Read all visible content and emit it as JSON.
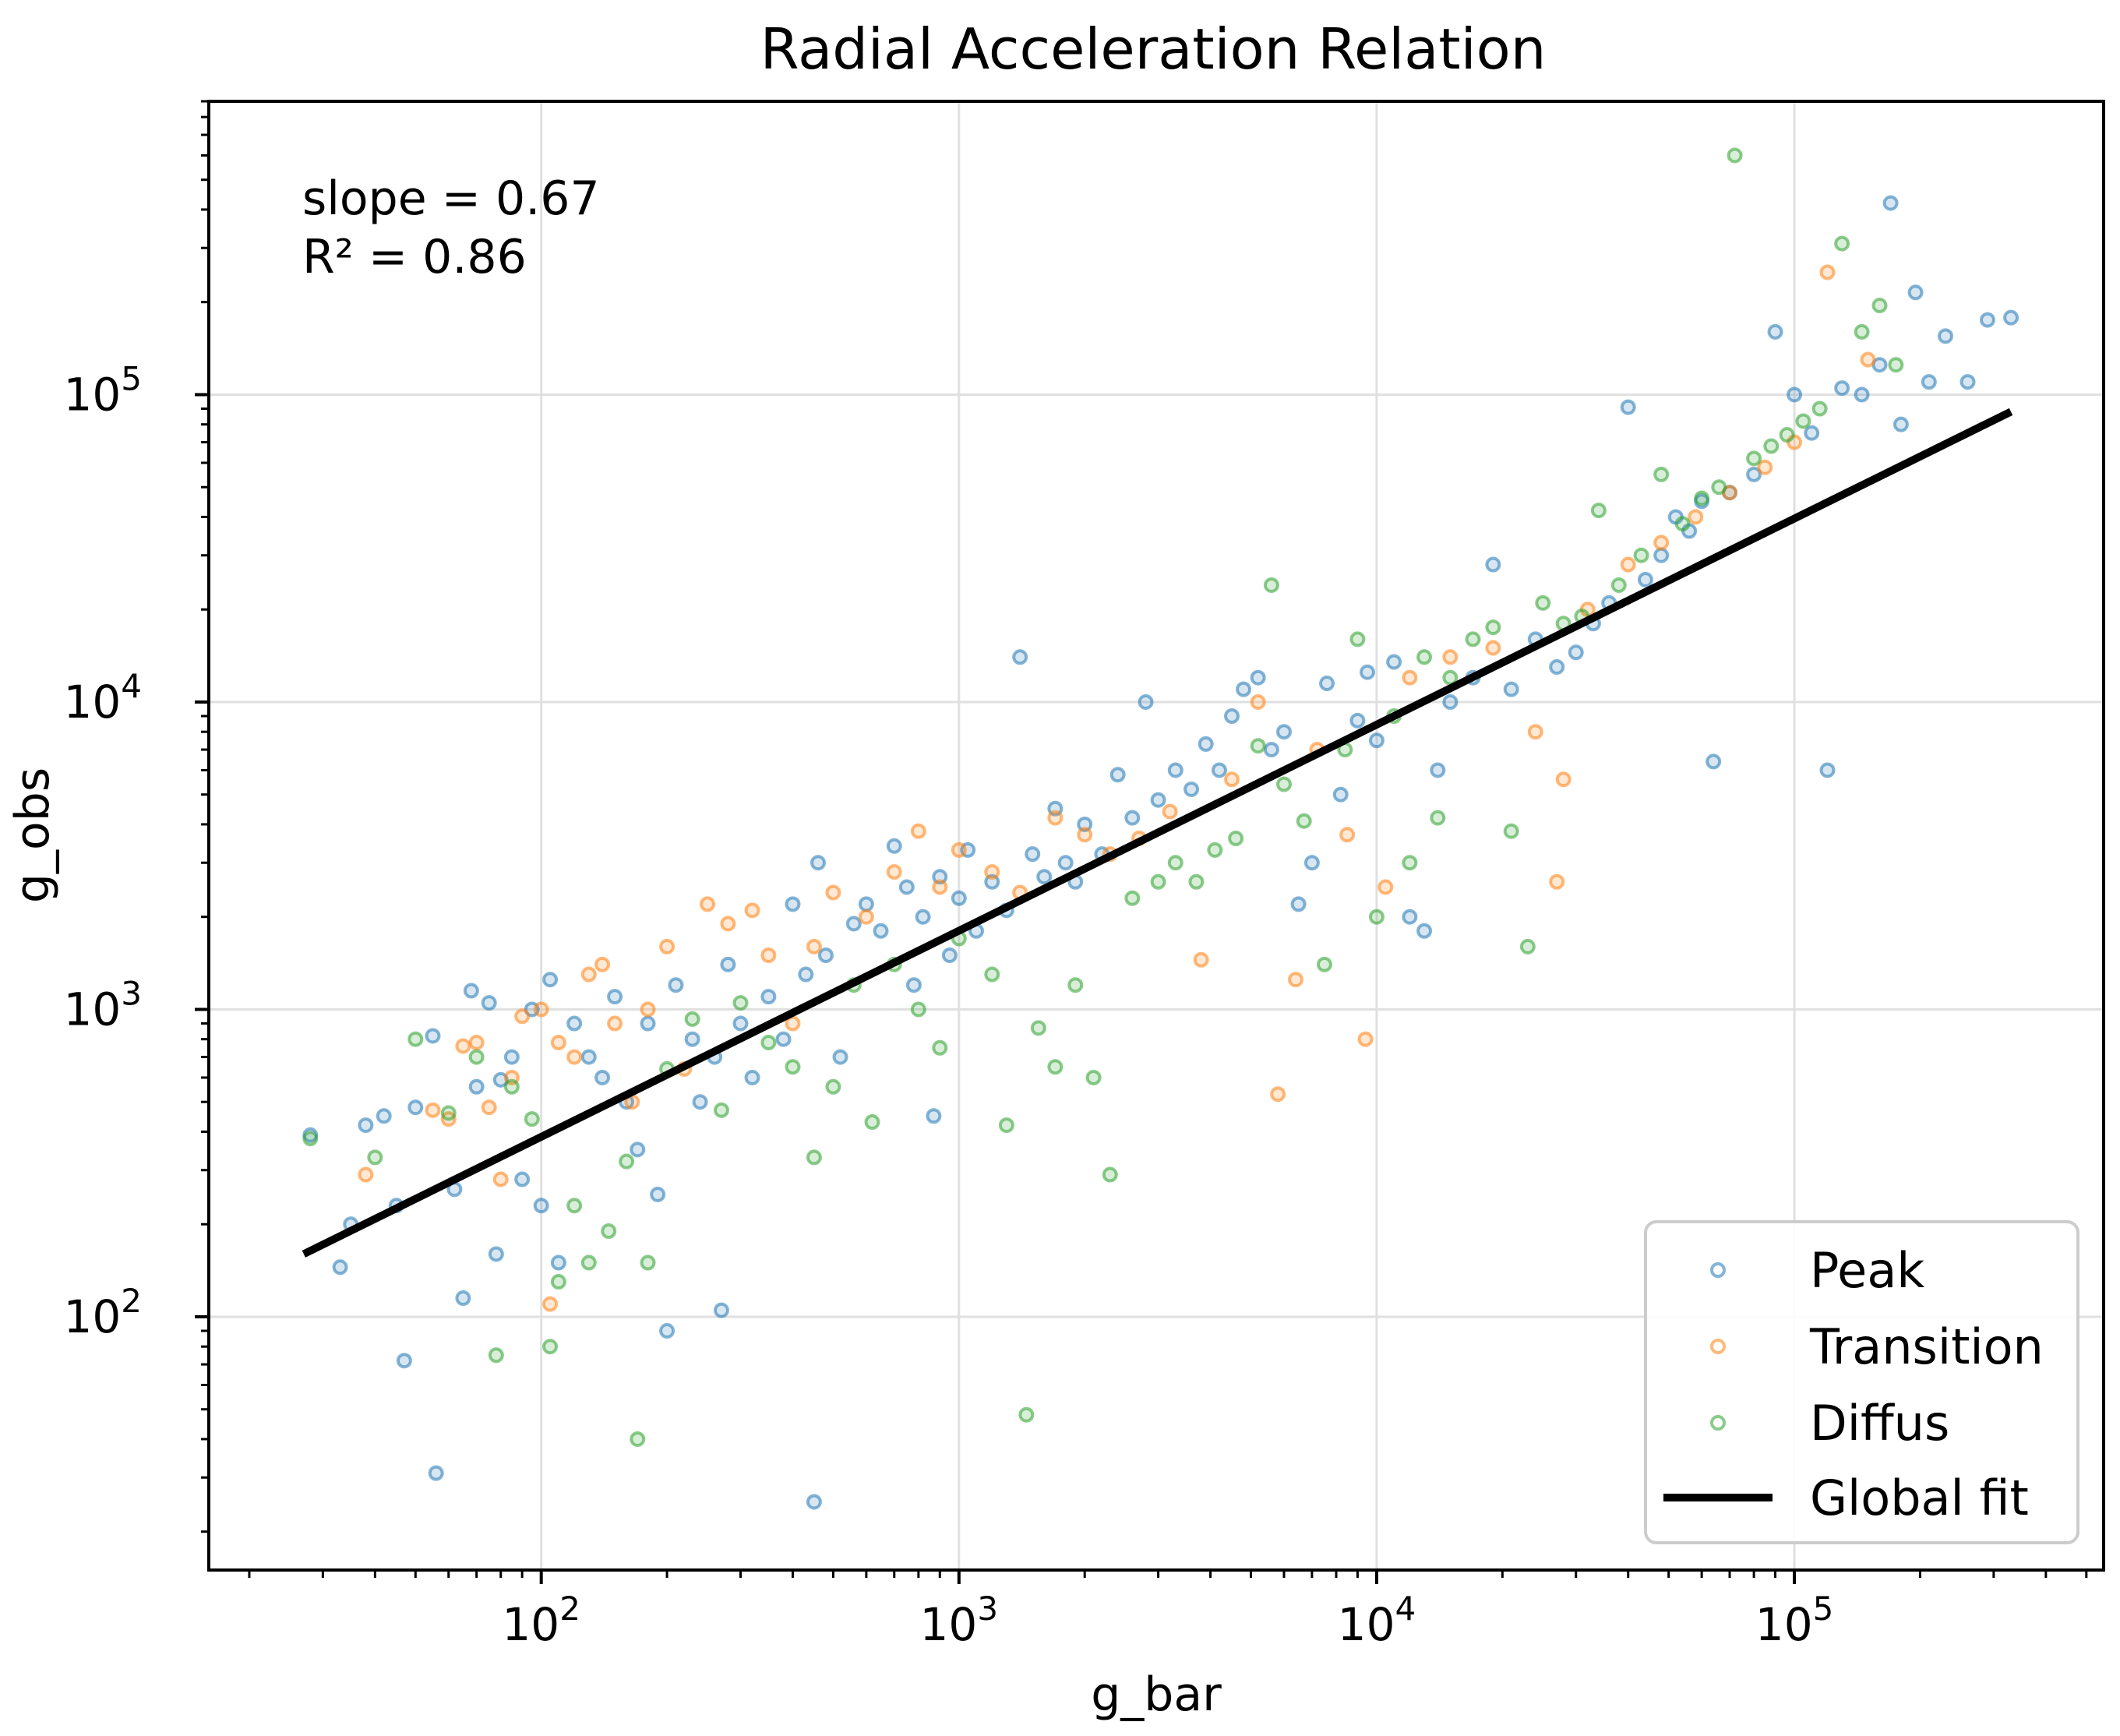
{
  "chart_data": {
    "type": "scatter",
    "title": "Radial Acceleration Relation",
    "xlabel": "g_bar",
    "ylabel": "g_obs",
    "xscale": "log",
    "yscale": "log",
    "xlim": [
      16,
      550000
    ],
    "ylim": [
      15,
      900000
    ],
    "xticks": [
      {
        "value": 100,
        "base": "10",
        "exp": "2"
      },
      {
        "value": 1000,
        "base": "10",
        "exp": "3"
      },
      {
        "value": 10000,
        "base": "10",
        "exp": "4"
      },
      {
        "value": 100000,
        "base": "10",
        "exp": "5"
      }
    ],
    "yticks": [
      {
        "value": 100,
        "base": "10",
        "exp": "2"
      },
      {
        "value": 1000,
        "base": "10",
        "exp": "3"
      },
      {
        "value": 10000,
        "base": "10",
        "exp": "4"
      },
      {
        "value": 100000,
        "base": "10",
        "exp": "5"
      }
    ],
    "grid": true,
    "annotation": [
      "slope = 0.67",
      "R² = 0.86"
    ],
    "legend_position": "lower-right",
    "series": [
      {
        "name": "Peak",
        "color": "#1f77b4",
        "points": [
          [
            28,
            390
          ],
          [
            33,
            145
          ],
          [
            35,
            200
          ],
          [
            38,
            420
          ],
          [
            42,
            450
          ],
          [
            45,
            230
          ],
          [
            47,
            72
          ],
          [
            50,
            480
          ],
          [
            55,
            820
          ],
          [
            56,
            31
          ],
          [
            62,
            260
          ],
          [
            65,
            115
          ],
          [
            68,
            1150
          ],
          [
            70,
            560
          ],
          [
            75,
            1050
          ],
          [
            78,
            160
          ],
          [
            80,
            590
          ],
          [
            85,
            700
          ],
          [
            90,
            280
          ],
          [
            95,
            1000
          ],
          [
            100,
            230
          ],
          [
            105,
            1250
          ],
          [
            110,
            150
          ],
          [
            120,
            900
          ],
          [
            130,
            700
          ],
          [
            140,
            600
          ],
          [
            150,
            1100
          ],
          [
            160,
            500
          ],
          [
            170,
            350
          ],
          [
            180,
            900
          ],
          [
            190,
            250
          ],
          [
            200,
            90
          ],
          [
            210,
            1200
          ],
          [
            230,
            800
          ],
          [
            240,
            500
          ],
          [
            260,
            700
          ],
          [
            270,
            105
          ],
          [
            280,
            1400
          ],
          [
            300,
            900
          ],
          [
            320,
            600
          ],
          [
            350,
            1100
          ],
          [
            380,
            800
          ],
          [
            400,
            2200
          ],
          [
            430,
            1300
          ],
          [
            450,
            25
          ],
          [
            460,
            3000
          ],
          [
            480,
            1500
          ],
          [
            520,
            700
          ],
          [
            560,
            1900
          ],
          [
            600,
            2200
          ],
          [
            650,
            1800
          ],
          [
            700,
            3400
          ],
          [
            750,
            2500
          ],
          [
            780,
            1200
          ],
          [
            820,
            2000
          ],
          [
            870,
            450
          ],
          [
            900,
            2700
          ],
          [
            950,
            1500
          ],
          [
            1000,
            2300
          ],
          [
            1050,
            3300
          ],
          [
            1100,
            1800
          ],
          [
            1200,
            2600
          ],
          [
            1300,
            2100
          ],
          [
            1400,
            14000
          ],
          [
            1500,
            3200
          ],
          [
            1600,
            2700
          ],
          [
            1700,
            4500
          ],
          [
            1800,
            3000
          ],
          [
            1900,
            2600
          ],
          [
            2000,
            4000
          ],
          [
            2200,
            3200
          ],
          [
            2400,
            5800
          ],
          [
            2600,
            4200
          ],
          [
            2800,
            10000
          ],
          [
            3000,
            4800
          ],
          [
            3300,
            6000
          ],
          [
            3600,
            5200
          ],
          [
            3900,
            7300
          ],
          [
            4200,
            6000
          ],
          [
            4500,
            9000
          ],
          [
            4800,
            11000
          ],
          [
            5200,
            12000
          ],
          [
            5600,
            7000
          ],
          [
            6000,
            8000
          ],
          [
            6500,
            2200
          ],
          [
            7000,
            3000
          ],
          [
            7600,
            11500
          ],
          [
            8200,
            5000
          ],
          [
            9000,
            8700
          ],
          [
            9500,
            12500
          ],
          [
            10000,
            7500
          ],
          [
            11000,
            13500
          ],
          [
            12000,
            2000
          ],
          [
            13000,
            1800
          ],
          [
            14000,
            6000
          ],
          [
            15000,
            10000
          ],
          [
            17000,
            12000
          ],
          [
            19000,
            28000
          ],
          [
            21000,
            11000
          ],
          [
            24000,
            16000
          ],
          [
            27000,
            13000
          ],
          [
            30000,
            14500
          ],
          [
            33000,
            18000
          ],
          [
            36000,
            21000
          ],
          [
            40000,
            91000
          ],
          [
            44000,
            25000
          ],
          [
            48000,
            30000
          ],
          [
            52000,
            40000
          ],
          [
            56000,
            36000
          ],
          [
            60000,
            45000
          ],
          [
            64000,
            6400
          ],
          [
            70000,
            48000
          ],
          [
            80000,
            55000
          ],
          [
            90000,
            160000
          ],
          [
            100000,
            100000
          ],
          [
            110000,
            75000
          ],
          [
            120000,
            6000
          ],
          [
            130000,
            105000
          ],
          [
            145000,
            100000
          ],
          [
            160000,
            125000
          ],
          [
            170000,
            420000
          ],
          [
            180000,
            80000
          ],
          [
            195000,
            215000
          ],
          [
            210000,
            110000
          ],
          [
            230000,
            155000
          ],
          [
            260000,
            110000
          ],
          [
            290000,
            175000
          ],
          [
            330000,
            178000
          ]
        ]
      },
      {
        "name": "Transition",
        "color": "#ff7f0e",
        "points": [
          [
            38,
            290
          ],
          [
            55,
            470
          ],
          [
            60,
            440
          ],
          [
            65,
            760
          ],
          [
            70,
            780
          ],
          [
            75,
            480
          ],
          [
            80,
            280
          ],
          [
            85,
            600
          ],
          [
            90,
            950
          ],
          [
            100,
            1000
          ],
          [
            105,
            110
          ],
          [
            110,
            780
          ],
          [
            120,
            700
          ],
          [
            130,
            1300
          ],
          [
            140,
            1400
          ],
          [
            150,
            900
          ],
          [
            165,
            500
          ],
          [
            180,
            1000
          ],
          [
            200,
            1600
          ],
          [
            220,
            640
          ],
          [
            250,
            2200
          ],
          [
            280,
            1900
          ],
          [
            320,
            2100
          ],
          [
            350,
            1500
          ],
          [
            400,
            900
          ],
          [
            450,
            1600
          ],
          [
            500,
            2400
          ],
          [
            600,
            2000
          ],
          [
            700,
            2800
          ],
          [
            800,
            3800
          ],
          [
            900,
            2500
          ],
          [
            1000,
            3300
          ],
          [
            1200,
            2800
          ],
          [
            1400,
            2400
          ],
          [
            1700,
            4200
          ],
          [
            2000,
            3700
          ],
          [
            2300,
            3200
          ],
          [
            2700,
            3600
          ],
          [
            3200,
            4400
          ],
          [
            3800,
            1450
          ],
          [
            4500,
            5600
          ],
          [
            5200,
            10000
          ],
          [
            5800,
            530
          ],
          [
            6400,
            1250
          ],
          [
            7200,
            7000
          ],
          [
            8500,
            3700
          ],
          [
            9400,
            800
          ],
          [
            10500,
            2500
          ],
          [
            12000,
            12000
          ],
          [
            15000,
            14000
          ],
          [
            19000,
            15000
          ],
          [
            24000,
            8000
          ],
          [
            27000,
            2600
          ],
          [
            28000,
            5600
          ],
          [
            32000,
            20000
          ],
          [
            40000,
            28000
          ],
          [
            48000,
            33000
          ],
          [
            58000,
            40000
          ],
          [
            70000,
            48000
          ],
          [
            85000,
            58000
          ],
          [
            100000,
            70000
          ],
          [
            120000,
            250000
          ],
          [
            150000,
            130000
          ]
        ]
      },
      {
        "name": "Diffus",
        "color": "#2ca02c",
        "points": [
          [
            28,
            380
          ],
          [
            40,
            330
          ],
          [
            50,
            800
          ],
          [
            60,
            460
          ],
          [
            70,
            700
          ],
          [
            78,
            75
          ],
          [
            85,
            560
          ],
          [
            95,
            440
          ],
          [
            105,
            80
          ],
          [
            110,
            130
          ],
          [
            120,
            230
          ],
          [
            130,
            150
          ],
          [
            145,
            190
          ],
          [
            160,
            320
          ],
          [
            170,
            40
          ],
          [
            180,
            150
          ],
          [
            200,
            640
          ],
          [
            230,
            930
          ],
          [
            270,
            470
          ],
          [
            300,
            1050
          ],
          [
            350,
            780
          ],
          [
            400,
            650
          ],
          [
            450,
            330
          ],
          [
            500,
            560
          ],
          [
            560,
            1200
          ],
          [
            620,
            430
          ],
          [
            700,
            1400
          ],
          [
            800,
            1000
          ],
          [
            900,
            750
          ],
          [
            1000,
            1700
          ],
          [
            1200,
            1300
          ],
          [
            1300,
            420
          ],
          [
            1450,
            48
          ],
          [
            1550,
            870
          ],
          [
            1700,
            650
          ],
          [
            1900,
            1200
          ],
          [
            2100,
            600
          ],
          [
            2300,
            290
          ],
          [
            2600,
            2300
          ],
          [
            3000,
            2600
          ],
          [
            3300,
            3000
          ],
          [
            3700,
            2600
          ],
          [
            4100,
            3300
          ],
          [
            4600,
            3600
          ],
          [
            5200,
            7200
          ],
          [
            5600,
            24000
          ],
          [
            6000,
            5400
          ],
          [
            6700,
            4100
          ],
          [
            7500,
            1400
          ],
          [
            8400,
            7000
          ],
          [
            9000,
            16000
          ],
          [
            10000,
            2000
          ],
          [
            11000,
            9000
          ],
          [
            12000,
            3000
          ],
          [
            13000,
            14000
          ],
          [
            14000,
            4200
          ],
          [
            15000,
            12000
          ],
          [
            17000,
            16000
          ],
          [
            19000,
            17500
          ],
          [
            21000,
            3800
          ],
          [
            23000,
            1600
          ],
          [
            25000,
            21000
          ],
          [
            28000,
            18000
          ],
          [
            31000,
            19000
          ],
          [
            34000,
            42000
          ],
          [
            38000,
            24000
          ],
          [
            43000,
            30000
          ],
          [
            48000,
            55000
          ],
          [
            54000,
            38000
          ],
          [
            60000,
            46000
          ],
          [
            66000,
            50000
          ],
          [
            72000,
            600000
          ],
          [
            80000,
            62000
          ],
          [
            88000,
            68000
          ],
          [
            96000,
            74000
          ],
          [
            105000,
            82000
          ],
          [
            115000,
            90000
          ],
          [
            130000,
            310000
          ],
          [
            145000,
            160000
          ],
          [
            160000,
            195000
          ],
          [
            175000,
            125000
          ]
        ]
      }
    ],
    "fit": {
      "name": "Global fit",
      "color": "#000000",
      "x": [
        27,
        330000
      ],
      "y": [
        160,
        88000
      ]
    }
  }
}
